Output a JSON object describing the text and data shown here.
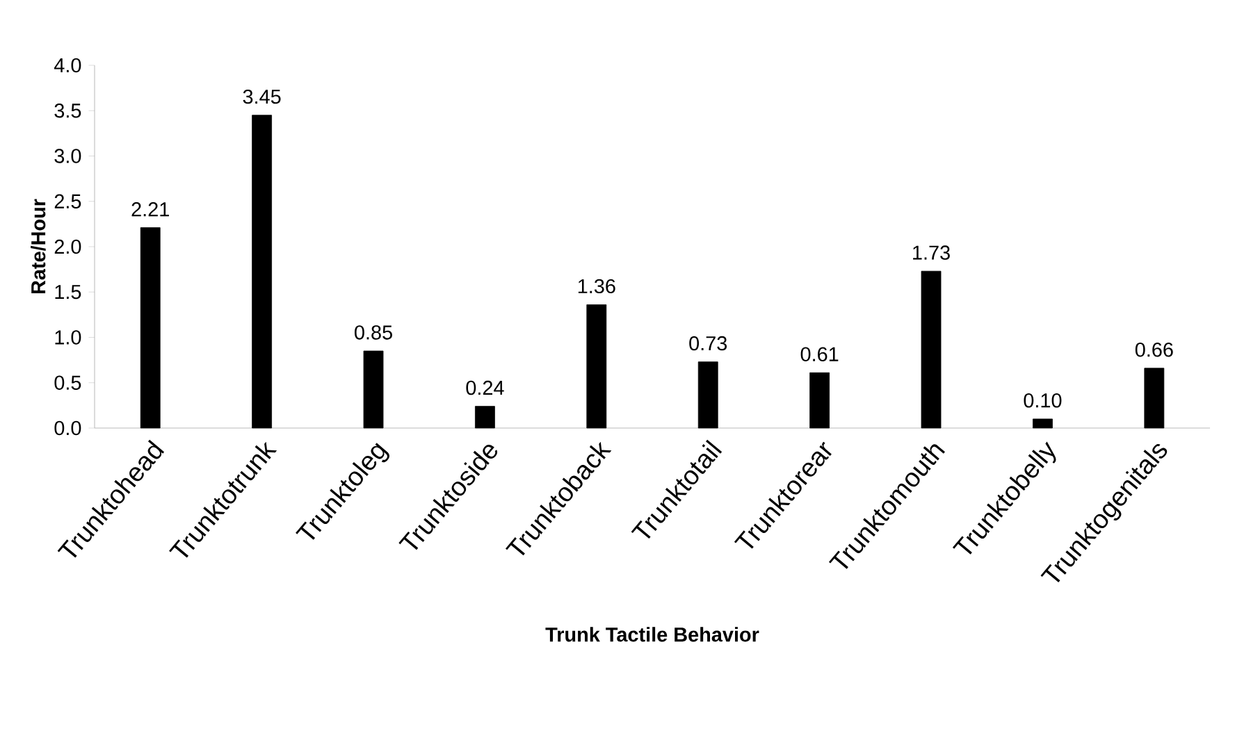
{
  "chart_data": {
    "type": "bar",
    "xlabel": "Trunk Tactile Behavior",
    "ylabel": "Rate/Hour",
    "categories": [
      "Trunktohead",
      "Trunktotrunk",
      "Trunktoleg",
      "Trunktoside",
      "Trunktoback",
      "Trunktotail",
      "Trunktorear",
      "Trunktomouth",
      "Trunktobelly",
      "Trunktogenitals"
    ],
    "values": [
      2.21,
      3.45,
      0.85,
      0.24,
      1.36,
      0.73,
      0.61,
      1.73,
      0.1,
      0.66
    ],
    "value_labels": [
      "2.21",
      "3.45",
      "0.85",
      "0.24",
      "1.36",
      "0.73",
      "0.61",
      "1.73",
      "0.10",
      "0.66"
    ],
    "color": "#000000",
    "ylim": [
      0,
      4
    ],
    "yticks": [
      {
        "value": 0,
        "label": "0.0"
      },
      {
        "value": 0.5,
        "label": "0.5"
      },
      {
        "value": 1,
        "label": "1.0"
      },
      {
        "value": 1.5,
        "label": "1.5"
      },
      {
        "value": 2,
        "label": "2.0"
      },
      {
        "value": 2.5,
        "label": "2.5"
      },
      {
        "value": 3,
        "label": "3.0"
      },
      {
        "value": 3.5,
        "label": "3.5"
      },
      {
        "value": 4,
        "label": "4.0"
      }
    ],
    "grid": false
  }
}
